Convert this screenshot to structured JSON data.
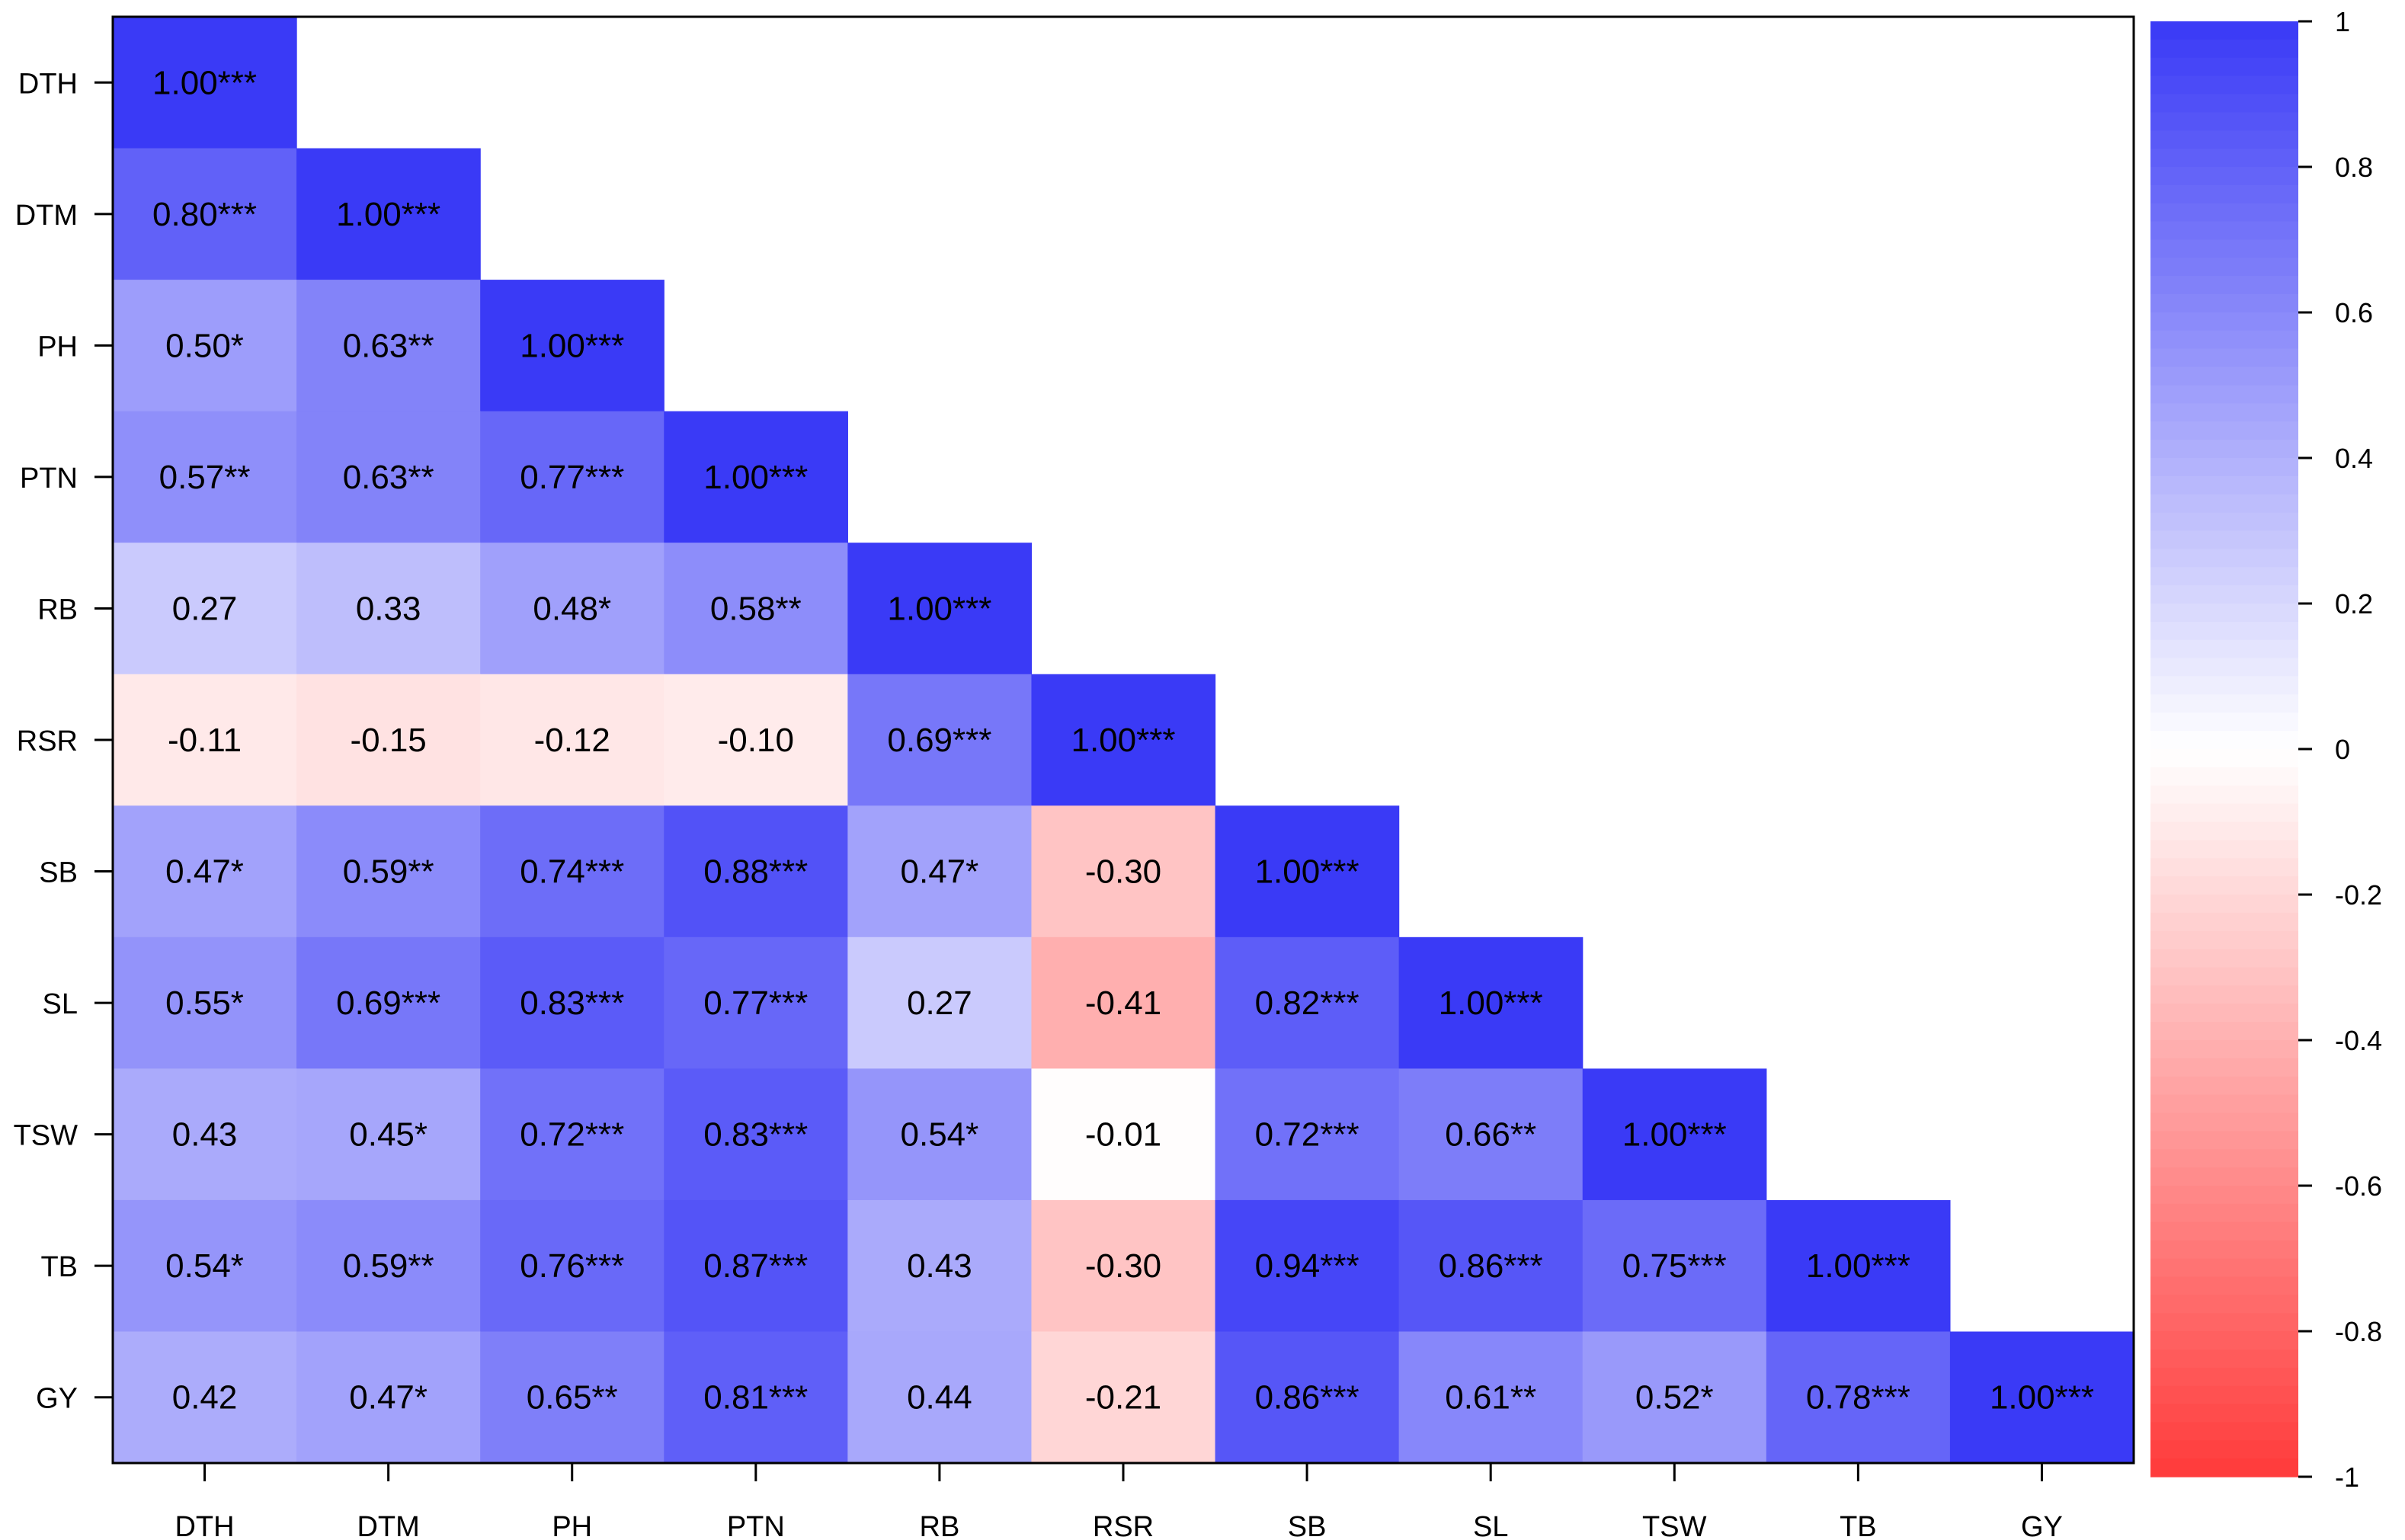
{
  "chart_data": {
    "type": "heatmap",
    "variables": [
      "DTH",
      "DTM",
      "PH",
      "PTN",
      "RB",
      "RSR",
      "SB",
      "SL",
      "TSW",
      "TB",
      "GY"
    ],
    "matrix_lower_triangle": [
      [
        1.0
      ],
      [
        0.8,
        1.0
      ],
      [
        0.5,
        0.63,
        1.0
      ],
      [
        0.57,
        0.63,
        0.77,
        1.0
      ],
      [
        0.27,
        0.33,
        0.48,
        0.58,
        1.0
      ],
      [
        -0.11,
        -0.15,
        -0.12,
        -0.1,
        0.69,
        1.0
      ],
      [
        0.47,
        0.59,
        0.74,
        0.88,
        0.47,
        -0.3,
        1.0
      ],
      [
        0.55,
        0.69,
        0.83,
        0.77,
        0.27,
        -0.41,
        0.82,
        1.0
      ],
      [
        0.43,
        0.45,
        0.72,
        0.83,
        0.54,
        -0.01,
        0.72,
        0.66,
        1.0
      ],
      [
        0.54,
        0.59,
        0.76,
        0.87,
        0.43,
        -0.3,
        0.94,
        0.86,
        0.75,
        1.0
      ],
      [
        0.42,
        0.47,
        0.65,
        0.81,
        0.44,
        -0.21,
        0.86,
        0.61,
        0.52,
        0.78,
        1.0
      ]
    ],
    "labels_lower_triangle": [
      [
        "1.00***"
      ],
      [
        "0.80***",
        "1.00***"
      ],
      [
        "0.50*",
        "0.63**",
        "1.00***"
      ],
      [
        "0.57**",
        "0.63**",
        "0.77***",
        "1.00***"
      ],
      [
        "0.27",
        "0.33",
        "0.48*",
        "0.58**",
        "1.00***"
      ],
      [
        "-0.11",
        "-0.15",
        "-0.12",
        "-0.10",
        "0.69***",
        "1.00***"
      ],
      [
        "0.47*",
        "0.59**",
        "0.74***",
        "0.88***",
        "0.47*",
        "-0.30",
        "1.00***"
      ],
      [
        "0.55*",
        "0.69***",
        "0.83***",
        "0.77***",
        "0.27",
        "-0.41",
        "0.82***",
        "1.00***"
      ],
      [
        "0.43",
        "0.45*",
        "0.72***",
        "0.83***",
        "0.54*",
        "-0.01",
        "0.72***",
        "0.66**",
        "1.00***"
      ],
      [
        "0.54*",
        "0.59**",
        "0.76***",
        "0.87***",
        "0.43",
        "-0.30",
        "0.94***",
        "0.86***",
        "0.75***",
        "1.00***"
      ],
      [
        "0.42",
        "0.47*",
        "0.65**",
        "0.81***",
        "0.44",
        "-0.21",
        "0.86***",
        "0.61**",
        "0.52*",
        "0.78***",
        "1.00***"
      ]
    ],
    "color_scale": {
      "min": -1,
      "max": 1,
      "negative_color": "#ff3b3b",
      "zero_color": "#ffffff",
      "positive_color": "#3a3af6",
      "ticks": [
        "1",
        "0.8",
        "0.6",
        "0.4",
        "0.2",
        "0",
        "-0.2",
        "-0.4",
        "-0.6",
        "-0.8",
        "-1"
      ]
    },
    "grid": false,
    "legend": "right"
  }
}
